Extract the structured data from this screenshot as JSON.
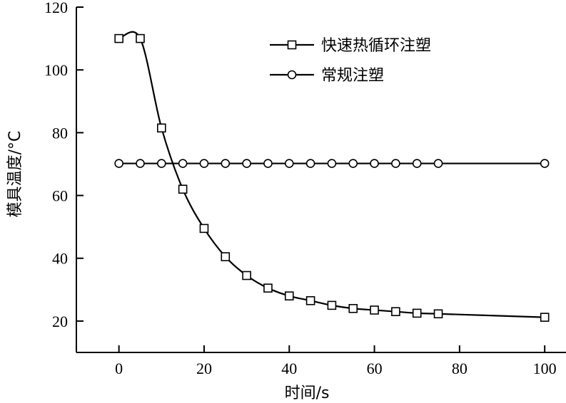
{
  "chart_data": {
    "type": "line",
    "title": "",
    "xlabel": "时间/s",
    "ylabel": "模具温度/°C",
    "xlim": [
      -10,
      105
    ],
    "ylim": [
      10,
      120
    ],
    "xticks": [
      0,
      20,
      40,
      60,
      80,
      100
    ],
    "yticks": [
      20,
      40,
      60,
      80,
      100,
      120
    ],
    "xtick_labels": [
      "0",
      "20",
      "40",
      "60",
      "80",
      "100"
    ],
    "ytick_labels": [
      "20",
      "40",
      "60",
      "80",
      "100",
      "120"
    ],
    "grid": false,
    "legend_position": "top-right",
    "series": [
      {
        "name": "快速热循环注塑",
        "marker": "square",
        "x": [
          0,
          5,
          10,
          15,
          20,
          25,
          30,
          35,
          40,
          45,
          50,
          55,
          60,
          65,
          70,
          75,
          100
        ],
        "y": [
          110,
          110,
          81.5,
          62,
          49.5,
          40.5,
          34.5,
          30.5,
          28,
          26.5,
          25,
          24,
          23.5,
          23,
          22.5,
          22.3,
          21.2
        ]
      },
      {
        "name": "常规注塑",
        "marker": "circle",
        "x": [
          0,
          5,
          10,
          15,
          20,
          25,
          30,
          35,
          40,
          45,
          50,
          55,
          60,
          65,
          70,
          75,
          100
        ],
        "y": [
          70.2,
          70.2,
          70.2,
          70.2,
          70.2,
          70.2,
          70.2,
          70.2,
          70.2,
          70.2,
          70.2,
          70.2,
          70.2,
          70.2,
          70.2,
          70.2,
          70.2
        ]
      }
    ]
  }
}
